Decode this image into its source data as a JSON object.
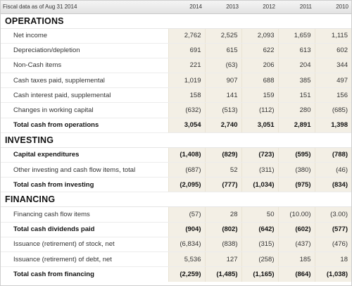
{
  "header": {
    "label": "Fiscal data as of Aug 31 2014",
    "years": [
      "2014",
      "2013",
      "2012",
      "2011",
      "2010"
    ]
  },
  "sections": [
    {
      "title": "OPERATIONS",
      "rows": [
        {
          "label": "Net income",
          "values": [
            "2,762",
            "2,525",
            "2,093",
            "1,659",
            "1,115"
          ],
          "total": false
        },
        {
          "label": "Depreciation/depletion",
          "values": [
            "691",
            "615",
            "622",
            "613",
            "602"
          ],
          "total": false
        },
        {
          "label": "Non-Cash items",
          "values": [
            "221",
            "(63)",
            "206",
            "204",
            "344"
          ],
          "total": false
        },
        {
          "label": "Cash taxes paid, supplemental",
          "values": [
            "1,019",
            "907",
            "688",
            "385",
            "497"
          ],
          "total": false
        },
        {
          "label": "Cash interest paid, supplemental",
          "values": [
            "158",
            "141",
            "159",
            "151",
            "156"
          ],
          "total": false
        },
        {
          "label": "Changes in working capital",
          "values": [
            "(632)",
            "(513)",
            "(112)",
            "280",
            "(685)"
          ],
          "total": false
        },
        {
          "label": "Total cash from operations",
          "values": [
            "3,054",
            "2,740",
            "3,051",
            "2,891",
            "1,398"
          ],
          "total": true
        }
      ]
    },
    {
      "title": "INVESTING",
      "rows": [
        {
          "label": "Capital expenditures",
          "values": [
            "(1,408)",
            "(829)",
            "(723)",
            "(595)",
            "(788)"
          ],
          "total": true
        },
        {
          "label": "Other investing and cash flow items, total",
          "values": [
            "(687)",
            "52",
            "(311)",
            "(380)",
            "(46)"
          ],
          "total": false
        },
        {
          "label": "Total cash from investing",
          "values": [
            "(2,095)",
            "(777)",
            "(1,034)",
            "(975)",
            "(834)"
          ],
          "total": true
        }
      ]
    },
    {
      "title": "FINANCING",
      "rows": [
        {
          "label": "Financing cash flow items",
          "values": [
            "(57)",
            "28",
            "50",
            "(10.00)",
            "(3.00)"
          ],
          "total": false
        },
        {
          "label": "Total cash dividends paid",
          "values": [
            "(904)",
            "(802)",
            "(642)",
            "(602)",
            "(577)"
          ],
          "total": true
        },
        {
          "label": "Issuance (retirement) of stock, net",
          "values": [
            "(6,834)",
            "(838)",
            "(315)",
            "(437)",
            "(476)"
          ],
          "total": false
        },
        {
          "label": "Issuance (retirement) of debt, net",
          "values": [
            "5,536",
            "127",
            "(258)",
            "185",
            "18"
          ],
          "total": false
        },
        {
          "label": "Total cash from financing",
          "values": [
            "(2,259)",
            "(1,485)",
            "(1,165)",
            "(864)",
            "(1,038)"
          ],
          "total": true
        }
      ]
    }
  ]
}
